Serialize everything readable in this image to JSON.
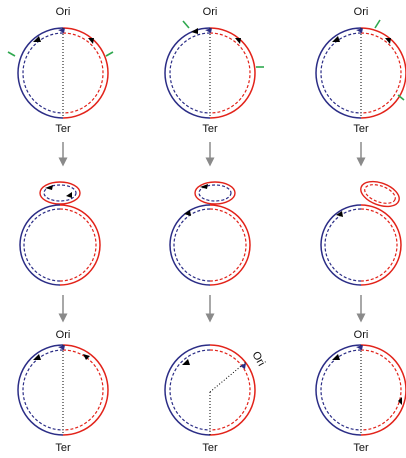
{
  "labels": {
    "ori": "Ori",
    "ter": "Ter"
  },
  "colors": {
    "blue_strand": "#2b2d86",
    "red_strand": "#e2231a",
    "arrow_gray": "#8a8a8a",
    "replication_fork_green": "#2fa84f",
    "axis_dotted": "#000000"
  },
  "icons": {
    "fork_marker": "green-arrow-icon",
    "progress_arrow": "down-arrow-icon",
    "direction_marker": "black-arrow-icon"
  }
}
